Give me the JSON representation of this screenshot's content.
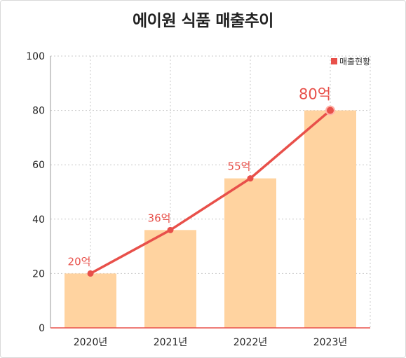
{
  "chart_data": {
    "type": "bar",
    "title": "에이원 식품 매출추이",
    "categories": [
      "2020년",
      "2021년",
      "2022년",
      "2023년"
    ],
    "series": [
      {
        "name": "매출현황",
        "values": [
          20,
          36,
          55,
          80
        ],
        "data_labels": [
          "20억",
          "36억",
          "55억",
          "80억"
        ]
      }
    ],
    "overlay_line": true,
    "ylim": [
      0,
      100
    ],
    "yticks": [
      0,
      20,
      40,
      60,
      80,
      100
    ],
    "grid": true,
    "legend_position": "top-right",
    "colors": {
      "bar": "#ffd3a0",
      "line": "#e8504a",
      "title_bar": "#e8504a",
      "grid": "#c8c8c8"
    }
  }
}
